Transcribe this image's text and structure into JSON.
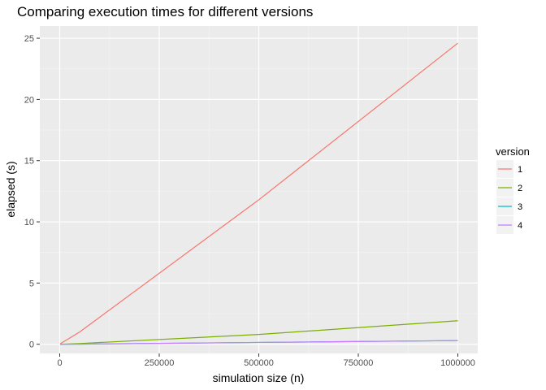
{
  "chart_data": {
    "type": "line",
    "title": "Comparing execution times for different versions",
    "xlabel": "simulation size (n)",
    "ylabel": "elapsed (s)",
    "xlim": [
      -50000,
      1050000
    ],
    "ylim": [
      -0.75,
      26
    ],
    "x_ticks": [
      0,
      250000,
      500000,
      750000,
      1000000
    ],
    "x_tick_labels": [
      "0",
      "250000",
      "500000",
      "750000",
      "1000000"
    ],
    "y_ticks": [
      0,
      5,
      10,
      15,
      20,
      25
    ],
    "y_tick_labels": [
      "0",
      "5",
      "10",
      "15",
      "20",
      "25"
    ],
    "grid": true,
    "legend": {
      "title": "version",
      "position": "right"
    },
    "series": [
      {
        "name": "1",
        "color": "#F8766D",
        "x": [
          1000,
          50000,
          500000,
          1000000
        ],
        "y": [
          0.03,
          1.0,
          11.8,
          24.6
        ]
      },
      {
        "name": "2",
        "color": "#7CAE00",
        "x": [
          1000,
          50000,
          500000,
          1000000
        ],
        "y": [
          0.0,
          0.06,
          0.8,
          1.92
        ]
      },
      {
        "name": "3",
        "color": "#00BFC4",
        "x": [
          1000,
          50000,
          500000,
          1000000
        ],
        "y": [
          0.0,
          0.01,
          0.15,
          0.3
        ]
      },
      {
        "name": "4",
        "color": "#C77CFF",
        "x": [
          1000,
          50000,
          500000,
          1000000
        ],
        "y": [
          0.0,
          0.01,
          0.15,
          0.3
        ]
      }
    ]
  }
}
